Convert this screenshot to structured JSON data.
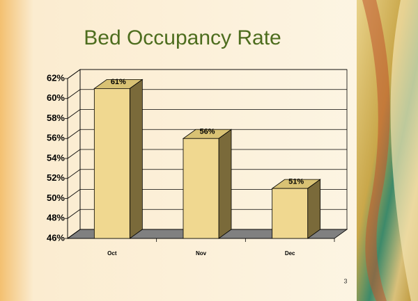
{
  "chart_data": {
    "type": "bar3d",
    "title": "Bed Occupancy Rate",
    "categories": [
      "Oct",
      "Nov",
      "Dec"
    ],
    "values": [
      61,
      56,
      51
    ],
    "value_labels": [
      "61%",
      "56%",
      "51%"
    ],
    "color": "#f0d890",
    "ylim": [
      46,
      62
    ],
    "yticks": [
      {
        "value": 46,
        "label": "46%"
      },
      {
        "value": 48,
        "label": "48%"
      },
      {
        "value": 50,
        "label": "50%"
      },
      {
        "value": 52,
        "label": "52%"
      },
      {
        "value": 54,
        "label": "54%"
      },
      {
        "value": 56,
        "label": "56%"
      },
      {
        "value": 58,
        "label": "58%"
      },
      {
        "value": 60,
        "label": "60%"
      },
      {
        "value": 62,
        "label": "62%"
      }
    ],
    "grid": true
  },
  "slide_number": "3"
}
